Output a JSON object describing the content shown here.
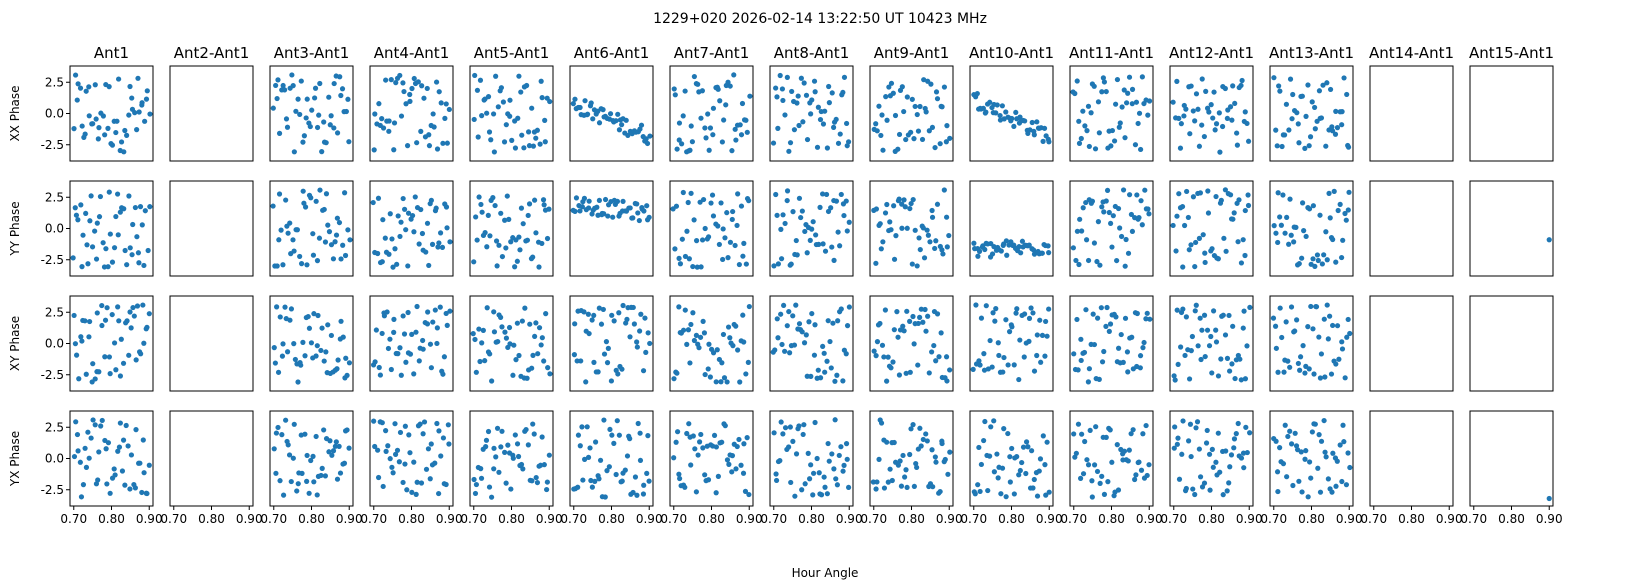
{
  "title": "1229+020  2026-02-14 13:22:50 UT  10423 MHz",
  "chart_data": {
    "type": "scatter",
    "title": "1229+020  2026-02-14 13:22:50 UT  10423 MHz",
    "columns": [
      "Ant1",
      "Ant2-Ant1",
      "Ant3-Ant1",
      "Ant4-Ant1",
      "Ant5-Ant1",
      "Ant6-Ant1",
      "Ant7-Ant1",
      "Ant8-Ant1",
      "Ant9-Ant1",
      "Ant10-Ant1",
      "Ant11-Ant1",
      "Ant12-Ant1",
      "Ant13-Ant1",
      "Ant14-Ant1",
      "Ant15-Ant1"
    ],
    "rows": [
      "XX Phase",
      "YY Phase",
      "XY Phase",
      "YX Phase"
    ],
    "xlabel": "Hour Angle",
    "xlim": [
      0.69,
      0.91
    ],
    "ylim": [
      -3.8,
      3.8
    ],
    "xticks": [
      "0.70",
      "0.80",
      "0.90"
    ],
    "yticks": [
      "2.5",
      "0.0",
      "-2.5"
    ],
    "point_color": "#1f77b4",
    "empty_panels": [
      [
        0,
        1
      ],
      [
        1,
        1
      ],
      [
        2,
        1
      ],
      [
        3,
        1
      ],
      [
        0,
        13
      ],
      [
        1,
        13
      ],
      [
        2,
        13
      ],
      [
        3,
        13
      ],
      [
        0,
        14
      ],
      [
        2,
        14
      ]
    ],
    "single_points": [
      {
        "row": 1,
        "col": 14,
        "x": 0.9,
        "y": -0.9
      },
      {
        "row": 3,
        "col": 14,
        "x": 0.9,
        "y": -3.2
      }
    ],
    "trends": [
      {
        "row": 0,
        "col": 5,
        "start": 0.8,
        "end": -1.8
      },
      {
        "row": 0,
        "col": 9,
        "start": 1.2,
        "end": -1.8
      },
      {
        "row": 1,
        "col": 5,
        "start": 2.0,
        "end": 1.2
      },
      {
        "row": 1,
        "col": 9,
        "start": -1.8,
        "end": -1.4
      }
    ]
  }
}
